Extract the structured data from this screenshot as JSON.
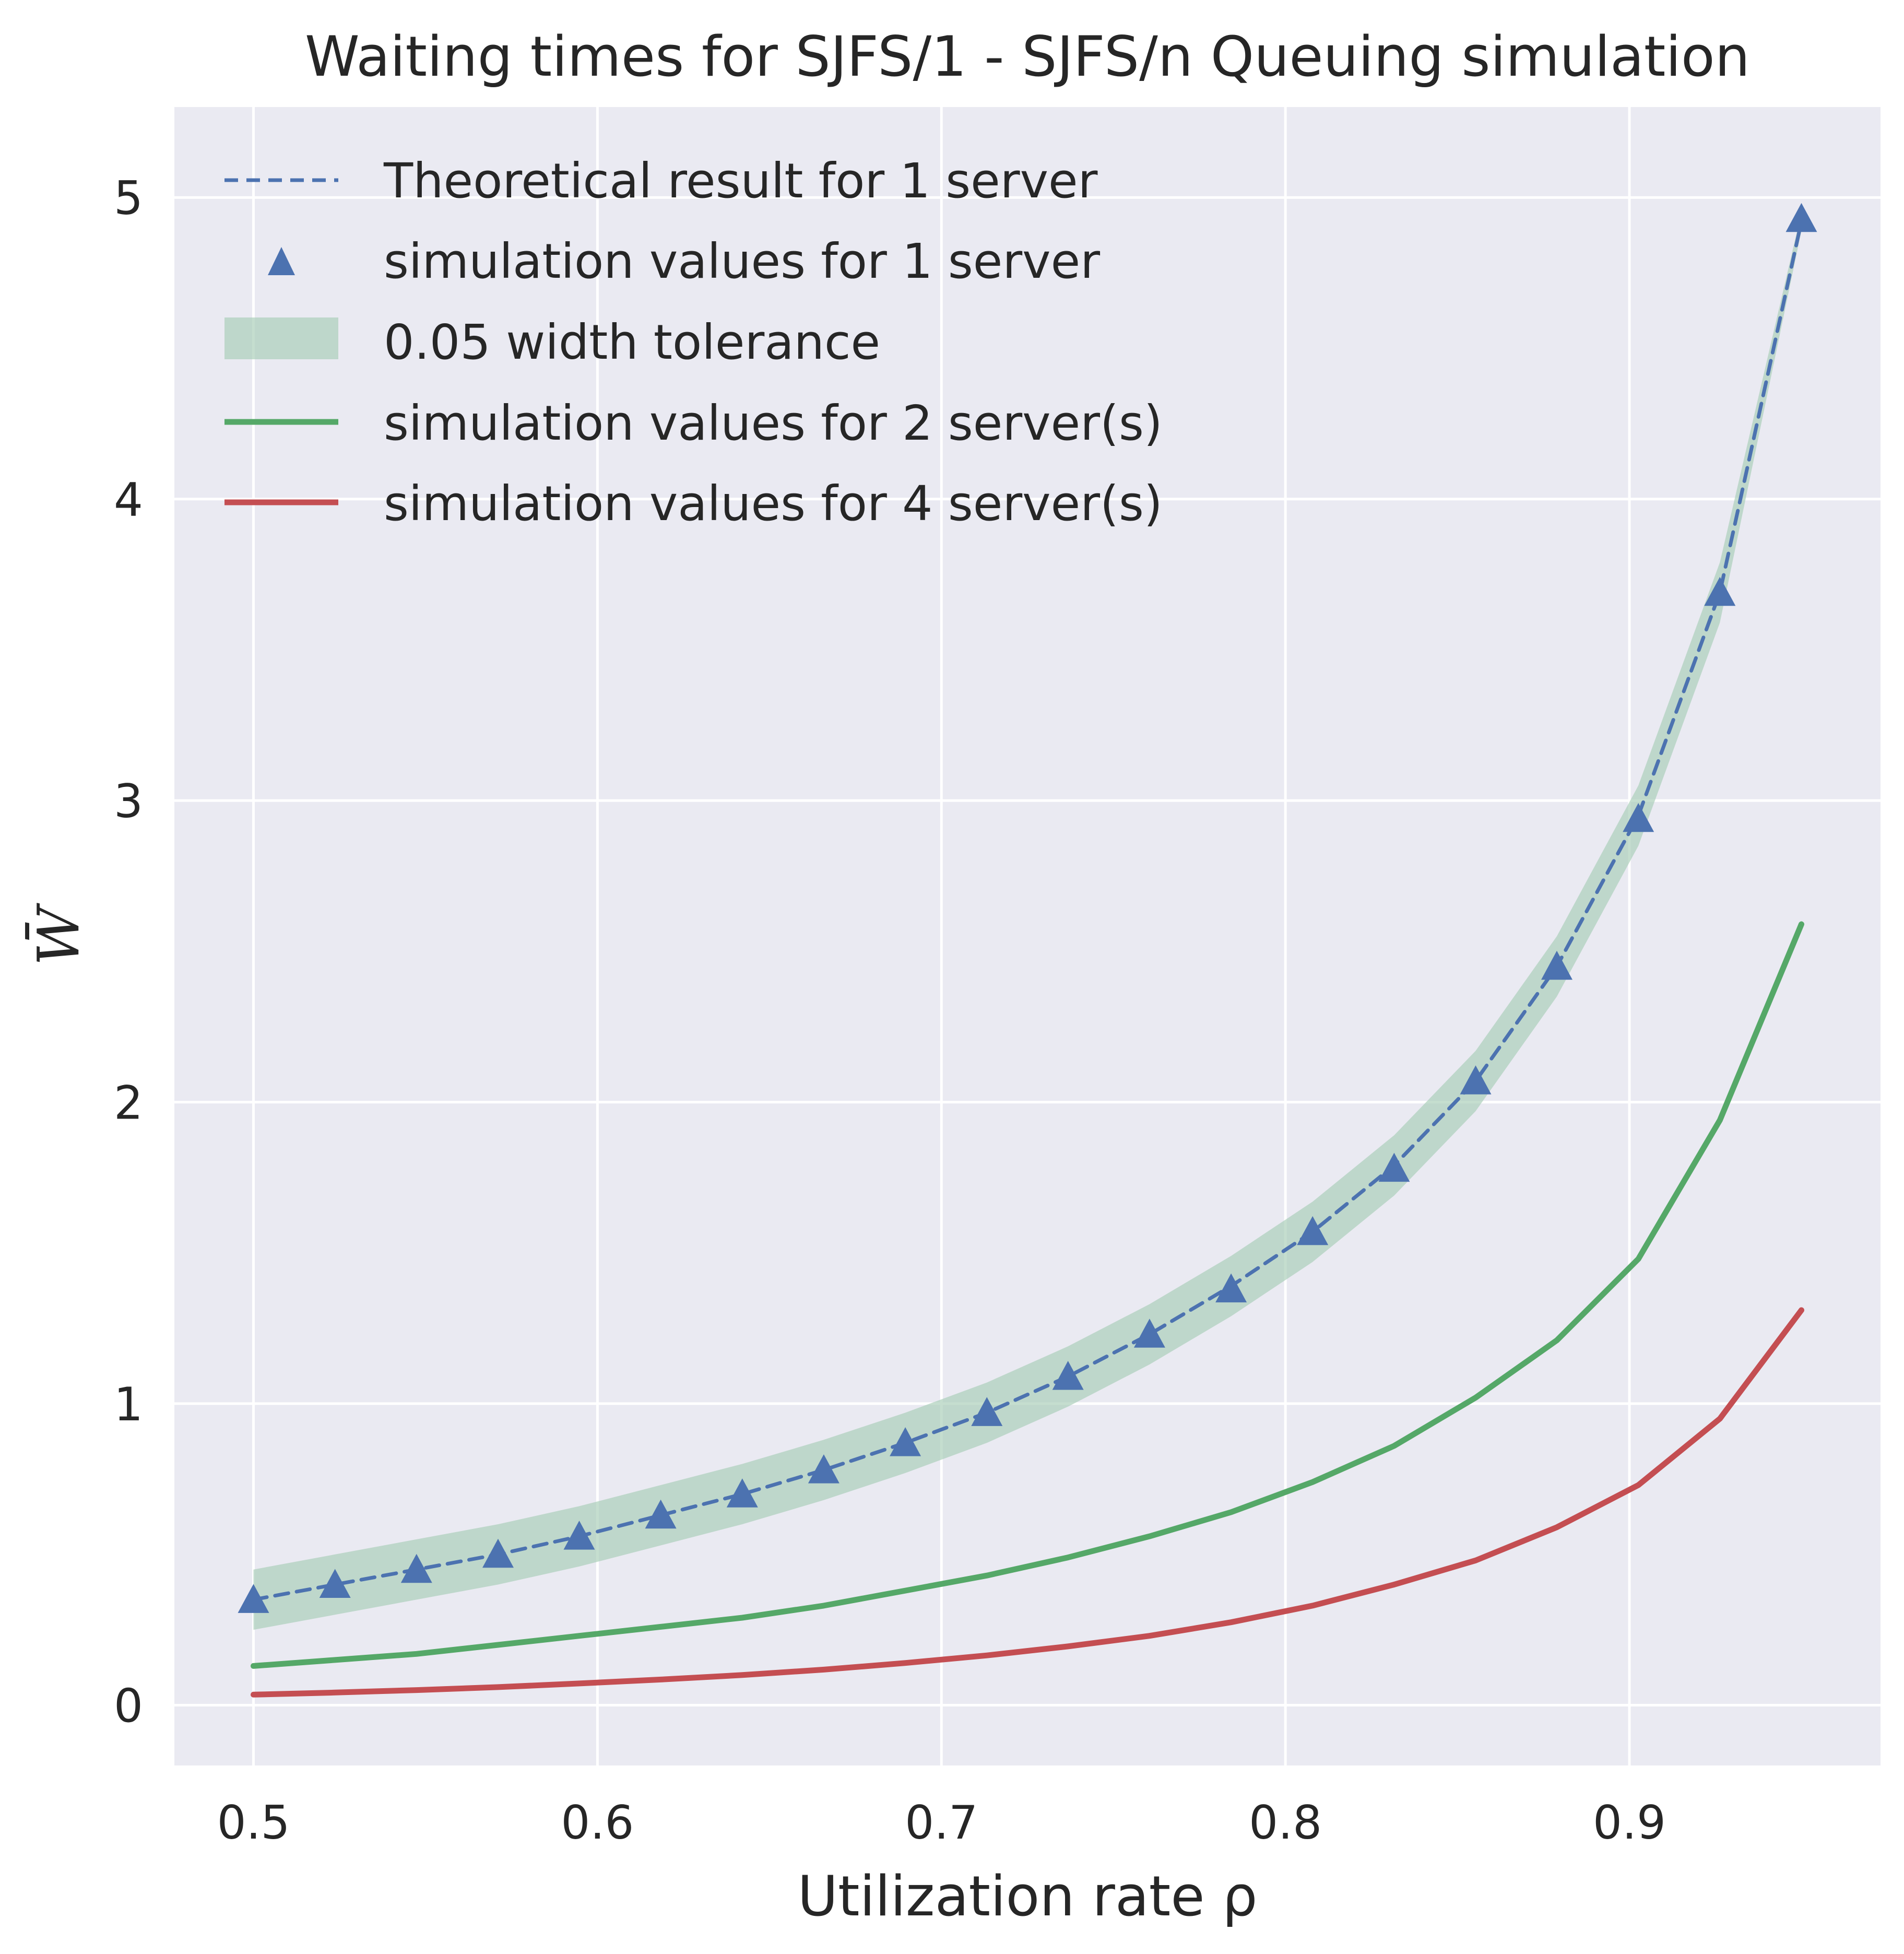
{
  "chart_data": {
    "type": "line",
    "title": "Waiting times for SJFS/1 - SJFS/n Queuing simulation",
    "xlabel": "Utilization rate ρ",
    "ylabel": "W̄",
    "xlim": [
      0.477,
      0.973
    ],
    "ylim": [
      -0.2,
      5.3
    ],
    "xticks": [
      0.5,
      0.6,
      0.7,
      0.8,
      0.9
    ],
    "xtick_labels": [
      "0.5",
      "0.6",
      "0.7",
      "0.8",
      "0.9"
    ],
    "yticks": [
      0,
      1,
      2,
      3,
      4,
      5
    ],
    "ytick_labels": [
      "0",
      "1",
      "2",
      "3",
      "4",
      "5"
    ],
    "grid": true,
    "legend_position": "top-left",
    "x": [
      0.5,
      0.5237,
      0.5474,
      0.5711,
      0.5947,
      0.6184,
      0.6421,
      0.6658,
      0.6895,
      0.7132,
      0.7368,
      0.7605,
      0.7842,
      0.8079,
      0.8316,
      0.8553,
      0.8789,
      0.9026,
      0.9263,
      0.95
    ],
    "series": [
      {
        "name": "Theoretical result for 1 server",
        "style": "dashed-line",
        "color": "#4c72b0",
        "values": [
          0.35,
          0.4,
          0.45,
          0.5,
          0.56,
          0.63,
          0.7,
          0.78,
          0.87,
          0.97,
          1.09,
          1.23,
          1.39,
          1.57,
          1.79,
          2.07,
          2.45,
          2.95,
          3.69,
          4.92
        ]
      },
      {
        "name": "simulation values for 1 server",
        "style": "triangle-markers",
        "color": "#4c72b0",
        "values": [
          0.35,
          0.4,
          0.45,
          0.5,
          0.56,
          0.63,
          0.7,
          0.78,
          0.87,
          0.97,
          1.09,
          1.23,
          1.38,
          1.57,
          1.78,
          2.07,
          2.45,
          2.94,
          3.69,
          4.93
        ]
      },
      {
        "name": "0.05 width tolerance",
        "style": "band",
        "color": "#a6cdb6",
        "note": "band of ±0.1 around the theoretical curve, widening near the end",
        "half_width": 0.1
      },
      {
        "name": "simulation values for 2 server(s)",
        "style": "solid-line",
        "color": "#55a868",
        "values": [
          0.13,
          0.15,
          0.17,
          0.2,
          0.23,
          0.26,
          0.29,
          0.33,
          0.38,
          0.43,
          0.49,
          0.56,
          0.64,
          0.74,
          0.86,
          1.02,
          1.21,
          1.48,
          1.94,
          2.59
        ]
      },
      {
        "name": "simulation values for 4 server(s)",
        "style": "solid-line",
        "color": "#c44e52",
        "values": [
          0.035,
          0.042,
          0.05,
          0.06,
          0.072,
          0.085,
          0.1,
          0.118,
          0.14,
          0.165,
          0.195,
          0.23,
          0.275,
          0.33,
          0.4,
          0.48,
          0.59,
          0.73,
          0.95,
          1.31
        ]
      }
    ]
  },
  "colors": {
    "plot_background": "#eaeaf2",
    "grid": "#ffffff",
    "text": "#262626"
  }
}
